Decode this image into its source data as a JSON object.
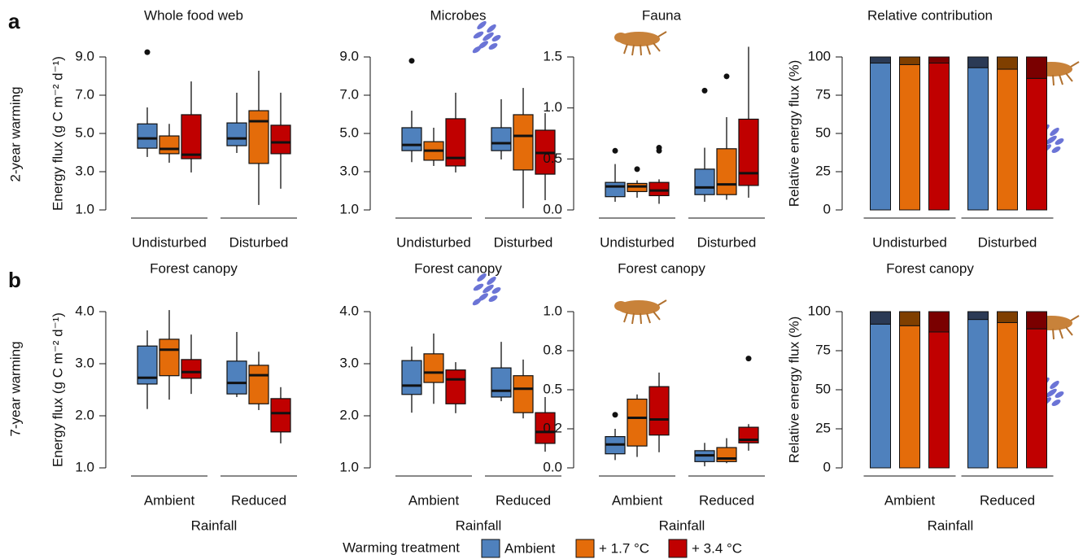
{
  "panel_labels": [
    "a",
    "b"
  ],
  "row_labels": [
    "2-year warming",
    "7-year warming"
  ],
  "legend": {
    "title": "Warming treatment",
    "entries": [
      {
        "name": "Ambient",
        "color": "#4f81bd"
      },
      {
        "name": "+ 1.7 °C",
        "color": "#e46c0a"
      },
      {
        "name": "+ 3.4 °C",
        "color": "#c00000"
      }
    ]
  },
  "chart_data": [
    {
      "type": "boxplot",
      "title": "Whole food web",
      "ylabel": "Energy flux (g C m⁻² d⁻¹)",
      "categories": [
        "Undisturbed",
        "Disturbed"
      ],
      "ylim": [
        1,
        9
      ],
      "yticks": [
        {
          "value": 1,
          "label": "1.0"
        },
        {
          "value": 3,
          "label": "3.0"
        },
        {
          "value": 5,
          "label": "5.0"
        },
        {
          "value": 7,
          "label": "7.0"
        },
        {
          "value": 9,
          "label": "9.0"
        }
      ],
      "series": [
        {
          "color": "#4f81bd",
          "min": [
            3.77,
            3.98
          ],
          "q1": [
            4.23,
            4.36
          ],
          "median": [
            4.74,
            4.74
          ],
          "q3": [
            5.5,
            5.55
          ],
          "max": [
            6.36,
            7.13
          ],
          "outliers": [
            [
              9.25
            ],
            []
          ]
        },
        {
          "color": "#e46c0a",
          "min": [
            3.47,
            1.26
          ],
          "q1": [
            3.94,
            3.43
          ],
          "median": [
            4.19,
            5.64
          ],
          "q3": [
            4.87,
            6.19
          ],
          "max": [
            5.5,
            8.28
          ],
          "outliers": [
            [],
            []
          ]
        },
        {
          "color": "#c00000",
          "min": [
            2.96,
            2.11
          ],
          "q1": [
            3.68,
            3.94
          ],
          "median": [
            3.89,
            4.53
          ],
          "q3": [
            5.98,
            5.43
          ],
          "max": [
            7.72,
            7.13
          ],
          "outliers": [
            [],
            []
          ]
        }
      ]
    },
    {
      "type": "boxplot",
      "title": "Microbes",
      "categories": [
        "Undisturbed",
        "Disturbed"
      ],
      "ylim": [
        1,
        9
      ],
      "yticks": [
        {
          "value": 1,
          "label": "1.0"
        },
        {
          "value": 3,
          "label": "3.0"
        },
        {
          "value": 5,
          "label": "5.0"
        },
        {
          "value": 7,
          "label": "7.0"
        },
        {
          "value": 9,
          "label": "9.0"
        }
      ],
      "series": [
        {
          "color": "#4f81bd",
          "min": [
            3.5,
            3.64
          ],
          "q1": [
            4.1,
            4.1
          ],
          "median": [
            4.4,
            4.49
          ],
          "q3": [
            5.3,
            5.3
          ],
          "max": [
            6.19,
            6.79
          ],
          "outliers": [
            [
              8.8
            ],
            []
          ]
        },
        {
          "color": "#e46c0a",
          "min": [
            3.3,
            1.09
          ],
          "q1": [
            3.6,
            3.09
          ],
          "median": [
            4.1,
            4.87
          ],
          "q3": [
            4.57,
            5.98
          ],
          "max": [
            5.3,
            7.38
          ],
          "outliers": [
            [],
            []
          ]
        },
        {
          "color": "#c00000",
          "min": [
            2.96,
            1.51
          ],
          "q1": [
            3.3,
            2.87
          ],
          "median": [
            3.72,
            3.98
          ],
          "q3": [
            5.77,
            5.17
          ],
          "max": [
            7.13,
            6.06
          ],
          "outliers": [
            [],
            []
          ]
        }
      ]
    },
    {
      "type": "boxplot",
      "title": "Fauna",
      "categories": [
        "Undisturbed",
        "Disturbed"
      ],
      "ylim": [
        0,
        1.5
      ],
      "yticks": [
        {
          "value": 0,
          "label": "0.0"
        },
        0.5,
        {
          "value": 1,
          "label": "1.0"
        },
        1.5
      ],
      "series": [
        {
          "color": "#4f81bd",
          "min": [
            0.08,
            0.08
          ],
          "q1": [
            0.13,
            0.15
          ],
          "median": [
            0.23,
            0.22
          ],
          "q3": [
            0.27,
            0.4
          ],
          "max": [
            0.45,
            0.61
          ],
          "outliers": [
            [
              0.58
            ],
            [
              1.17
            ]
          ]
        },
        {
          "color": "#e46c0a",
          "min": [
            0.12,
            0.1
          ],
          "q1": [
            0.18,
            0.15
          ],
          "median": [
            0.23,
            0.25
          ],
          "q3": [
            0.26,
            0.6
          ],
          "max": [
            0.29,
            0.91
          ],
          "outliers": [
            [
              0.4
            ],
            [
              1.31
            ]
          ]
        },
        {
          "color": "#c00000",
          "min": [
            0.06,
            0.12
          ],
          "q1": [
            0.14,
            0.24
          ],
          "median": [
            0.19,
            0.36
          ],
          "q3": [
            0.27,
            0.89
          ],
          "max": [
            0.3,
            1.6
          ],
          "outliers": [
            [
              0.61,
              0.58
            ],
            []
          ]
        }
      ]
    },
    {
      "type": "stacked_bar",
      "title": "Relative contribution",
      "ylabel": "Relative energy flux (%)",
      "categories": [
        "Undisturbed",
        "Disturbed"
      ],
      "ylim": [
        0,
        100
      ],
      "yticks": [
        0,
        25,
        50,
        75,
        100
      ],
      "series": [
        {
          "segments": [
            {
              "color": "#4f81bd",
              "values": [
                96,
                93
              ]
            },
            {
              "color": "#2b3a55",
              "values": [
                4,
                7
              ]
            }
          ]
        },
        {
          "segments": [
            {
              "color": "#e46c0a",
              "values": [
                95,
                92
              ]
            },
            {
              "color": "#7f3f00",
              "values": [
                5,
                8
              ]
            }
          ]
        },
        {
          "segments": [
            {
              "color": "#c00000",
              "values": [
                96,
                86
              ]
            },
            {
              "color": "#7a0000",
              "values": [
                4,
                14
              ]
            }
          ]
        }
      ]
    },
    {
      "type": "boxplot",
      "title": "Forest canopy",
      "ylabel": "Energy flux (g C m⁻² d⁻¹)",
      "xlabel": "Rainfall",
      "categories": [
        "Ambient",
        "Reduced"
      ],
      "ylim": [
        1,
        4
      ],
      "yticks": [
        {
          "value": 1,
          "label": "1.0"
        },
        {
          "value": 2,
          "label": "2.0"
        },
        {
          "value": 3,
          "label": "3.0"
        },
        {
          "value": 4,
          "label": "4.0"
        }
      ],
      "series": [
        {
          "color": "#4f81bd",
          "min": [
            2.13,
            2.36
          ],
          "q1": [
            2.61,
            2.42
          ],
          "median": [
            2.73,
            2.63
          ],
          "q3": [
            3.34,
            3.05
          ],
          "max": [
            3.64,
            3.61
          ],
          "outliers": [
            [],
            []
          ]
        },
        {
          "color": "#e46c0a",
          "min": [
            2.31,
            2.11
          ],
          "q1": [
            2.77,
            2.23
          ],
          "median": [
            3.27,
            2.78
          ],
          "q3": [
            3.47,
            2.97
          ],
          "max": [
            4.03,
            3.23
          ],
          "outliers": [
            [],
            []
          ]
        },
        {
          "color": "#c00000",
          "min": [
            2.42,
            1.47
          ],
          "q1": [
            2.72,
            1.69
          ],
          "median": [
            2.84,
            2.05
          ],
          "q3": [
            3.08,
            2.33
          ],
          "max": [
            3.56,
            2.55
          ],
          "outliers": [
            [],
            []
          ]
        }
      ]
    },
    {
      "type": "boxplot",
      "title": "Forest canopy",
      "xlabel": "Rainfall",
      "categories": [
        "Ambient",
        "Reduced"
      ],
      "ylim": [
        1,
        4
      ],
      "yticks": [
        {
          "value": 1,
          "label": "1.0"
        },
        {
          "value": 2,
          "label": "2.0"
        },
        {
          "value": 3,
          "label": "3.0"
        },
        {
          "value": 4,
          "label": "4.0"
        }
      ],
      "series": [
        {
          "color": "#4f81bd",
          "min": [
            2.06,
            2.28
          ],
          "q1": [
            2.41,
            2.36
          ],
          "median": [
            2.58,
            2.48
          ],
          "q3": [
            3.06,
            2.92
          ],
          "max": [
            3.33,
            3.42
          ],
          "outliers": [
            [],
            []
          ]
        },
        {
          "color": "#e46c0a",
          "min": [
            2.23,
            1.95
          ],
          "q1": [
            2.64,
            2.06
          ],
          "median": [
            2.83,
            2.52
          ],
          "q3": [
            3.19,
            2.77
          ],
          "max": [
            3.58,
            3.08
          ],
          "outliers": [
            [],
            []
          ]
        },
        {
          "color": "#c00000",
          "min": [
            2.05,
            1.31
          ],
          "q1": [
            2.23,
            1.47
          ],
          "median": [
            2.7,
            1.69
          ],
          "q3": [
            2.88,
            2.06
          ],
          "max": [
            3.03,
            2.36
          ],
          "outliers": [
            [],
            []
          ]
        }
      ]
    },
    {
      "type": "boxplot",
      "title": "Forest canopy",
      "xlabel": "Rainfall",
      "categories": [
        "Ambient",
        "Reduced"
      ],
      "ylim": [
        0,
        1
      ],
      "yticks": [
        {
          "value": 0,
          "label": "0.0"
        },
        {
          "value": 0.25,
          "label": "0.2"
        },
        0.5,
        {
          "value": 0.75,
          "label": "0.8"
        },
        {
          "value": 1,
          "label": "1.0"
        }
      ],
      "series": [
        {
          "color": "#4f81bd",
          "min": [
            0.05,
            0.01
          ],
          "q1": [
            0.09,
            0.04
          ],
          "median": [
            0.15,
            0.08
          ],
          "q3": [
            0.2,
            0.11
          ],
          "max": [
            0.25,
            0.16
          ],
          "outliers": [
            [
              0.34
            ],
            []
          ]
        },
        {
          "color": "#e46c0a",
          "min": [
            0.07,
            0.03
          ],
          "q1": [
            0.14,
            0.04
          ],
          "median": [
            0.32,
            0.06
          ],
          "q3": [
            0.44,
            0.13
          ],
          "max": [
            0.47,
            0.19
          ],
          "outliers": [
            [],
            []
          ]
        },
        {
          "color": "#c00000",
          "min": [
            0.1,
            0.11
          ],
          "q1": [
            0.21,
            0.16
          ],
          "median": [
            0.31,
            0.18
          ],
          "q3": [
            0.52,
            0.26
          ],
          "max": [
            0.61,
            0.28
          ],
          "outliers": [
            [],
            [
              0.7
            ]
          ]
        }
      ]
    },
    {
      "type": "stacked_bar",
      "title": "Forest canopy",
      "ylabel": "Relative energy flux (%)",
      "xlabel": "Rainfall",
      "categories": [
        "Ambient",
        "Reduced"
      ],
      "ylim": [
        0,
        100
      ],
      "yticks": [
        0,
        25,
        50,
        75,
        100
      ],
      "series": [
        {
          "segments": [
            {
              "color": "#4f81bd",
              "values": [
                92,
                95
              ]
            },
            {
              "color": "#2b3a55",
              "values": [
                8,
                5
              ]
            }
          ]
        },
        {
          "segments": [
            {
              "color": "#e46c0a",
              "values": [
                91,
                93
              ]
            },
            {
              "color": "#7f3f00",
              "values": [
                9,
                7
              ]
            }
          ]
        },
        {
          "segments": [
            {
              "color": "#c00000",
              "values": [
                87,
                89
              ]
            },
            {
              "color": "#7a0000",
              "values": [
                13,
                11
              ]
            }
          ]
        }
      ]
    }
  ]
}
